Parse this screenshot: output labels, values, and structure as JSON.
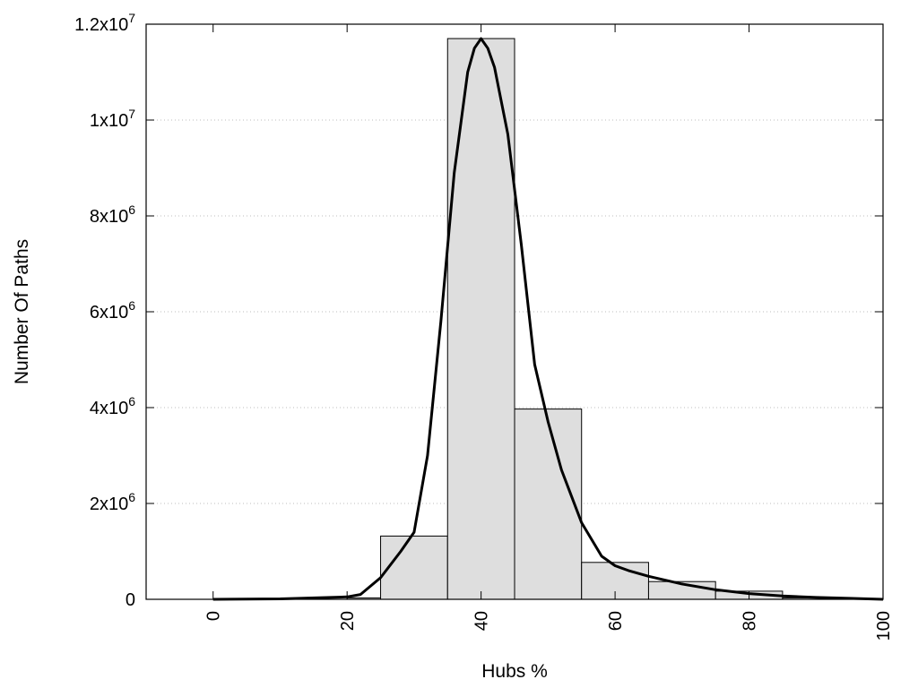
{
  "chart_data": {
    "type": "bar",
    "xlabel": "Hubs %",
    "ylabel": "Number Of Paths",
    "xlim": [
      -10,
      100
    ],
    "ylim": [
      0,
      12000000
    ],
    "grid": "horizontal dotted",
    "legend": "none",
    "x_ticks": [
      {
        "value": 0,
        "label": "0"
      },
      {
        "value": 20,
        "label": "20"
      },
      {
        "value": 40,
        "label": "40"
      },
      {
        "value": 60,
        "label": "60"
      },
      {
        "value": 80,
        "label": "80"
      },
      {
        "value": 100,
        "label": "100"
      }
    ],
    "y_ticks": [
      {
        "value": 0,
        "mantissa": "0",
        "exponent": ""
      },
      {
        "value": 2000000,
        "mantissa": "2x10",
        "exponent": "6"
      },
      {
        "value": 4000000,
        "mantissa": "4x10",
        "exponent": "6"
      },
      {
        "value": 6000000,
        "mantissa": "6x10",
        "exponent": "6"
      },
      {
        "value": 8000000,
        "mantissa": "8x10",
        "exponent": "6"
      },
      {
        "value": 10000000,
        "mantissa": "1x10",
        "exponent": "7"
      },
      {
        "value": 12000000,
        "mantissa": "1.2x10",
        "exponent": "7"
      }
    ],
    "bars": [
      {
        "x0": 0,
        "x1": 10,
        "value": 0
      },
      {
        "x0": 10,
        "x1": 20,
        "value": 0
      },
      {
        "x0": 20,
        "x1": 25,
        "value": 30000
      },
      {
        "x0": 25,
        "x1": 35,
        "value": 1320000
      },
      {
        "x0": 35,
        "x1": 45,
        "value": 11700000
      },
      {
        "x0": 45,
        "x1": 55,
        "value": 3970000
      },
      {
        "x0": 55,
        "x1": 65,
        "value": 770000
      },
      {
        "x0": 65,
        "x1": 75,
        "value": 370000
      },
      {
        "x0": 75,
        "x1": 85,
        "value": 170000
      },
      {
        "x0": 85,
        "x1": 95,
        "value": 30000
      }
    ],
    "curve": {
      "x": [
        0,
        10,
        20,
        22,
        25,
        28,
        30,
        32,
        34,
        36,
        38,
        39,
        40,
        41,
        42,
        44,
        46,
        48,
        50,
        52,
        55,
        58,
        60,
        62,
        65,
        70,
        75,
        80,
        85,
        90,
        95,
        100
      ],
      "y": [
        0,
        10000,
        50000,
        100000,
        450000,
        1000000,
        1400000,
        3000000,
        5800000,
        8900000,
        11000000,
        11500000,
        11700000,
        11500000,
        11100000,
        9700000,
        7400000,
        4900000,
        3700000,
        2700000,
        1600000,
        900000,
        700000,
        600000,
        480000,
        320000,
        200000,
        120000,
        70000,
        40000,
        20000,
        0
      ]
    },
    "colors": {
      "bar_fill": "#dedede",
      "bar_stroke": "#000000",
      "curve": "#000000",
      "grid": "#bdbdbd"
    }
  }
}
